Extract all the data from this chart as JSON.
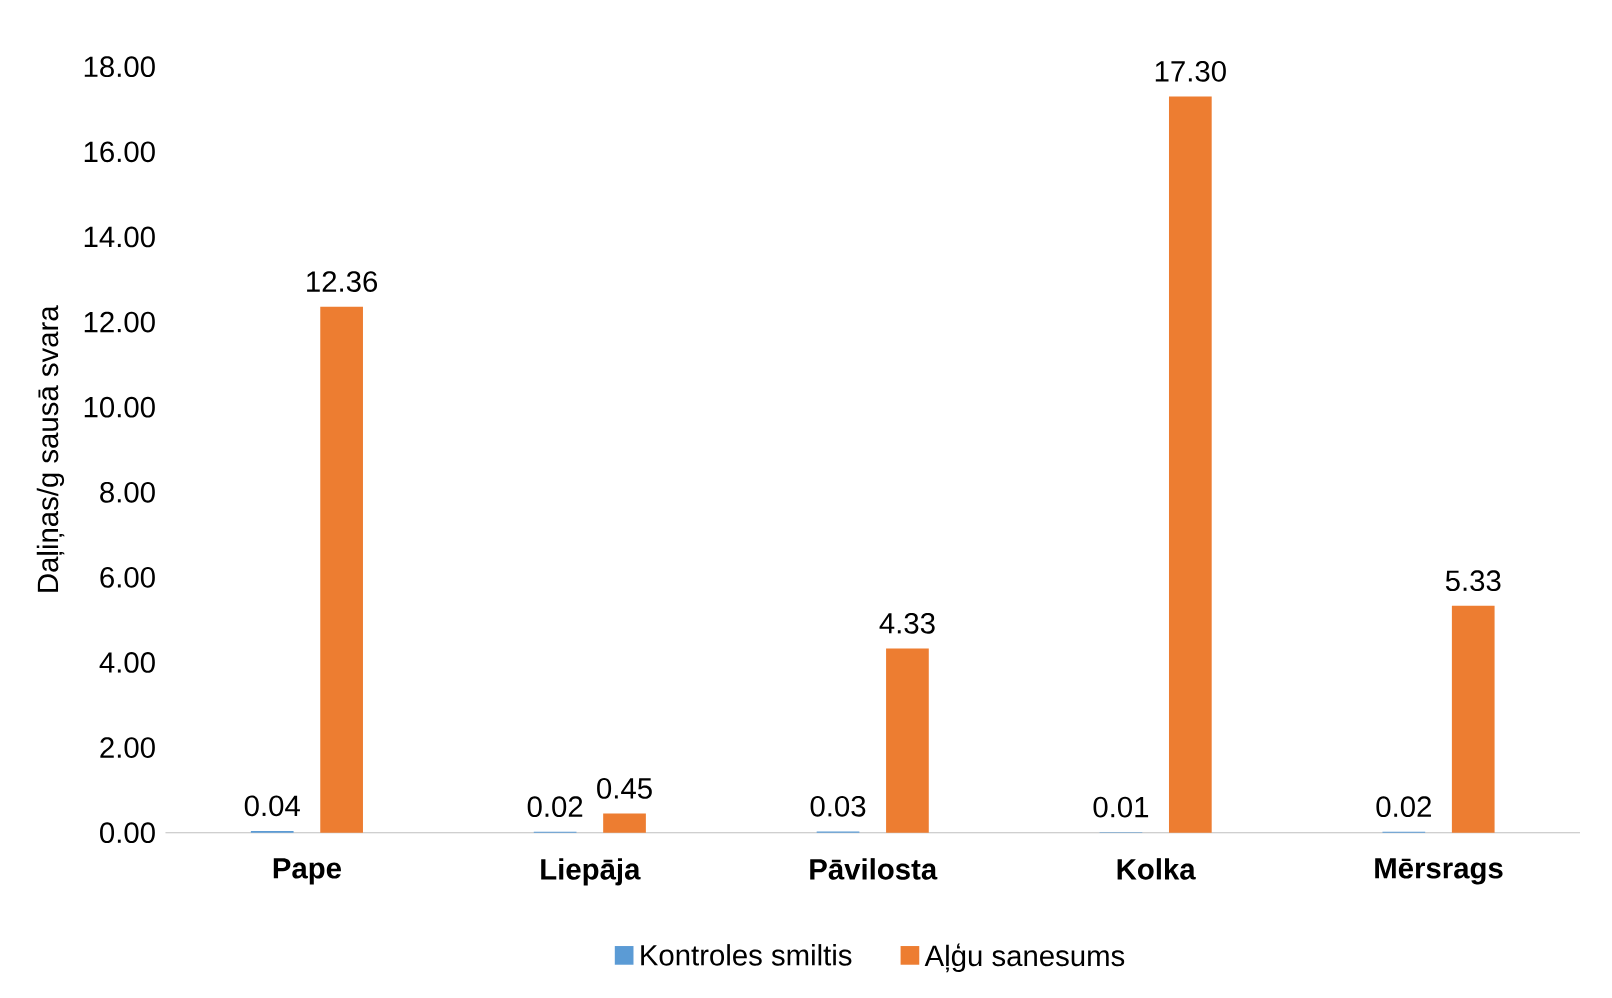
{
  "chart_data": {
    "type": "bar",
    "ylabel": "Daļiņas/g sausā svara",
    "categories": [
      "Pape",
      "Liepāja",
      "Pāvilosta",
      "Kolka",
      "Mērsrags"
    ],
    "series": [
      {
        "name": "Kontroles smiltis",
        "color": "#5b9bd5",
        "values": [
          0.04,
          0.02,
          0.03,
          0.01,
          0.02
        ],
        "value_labels": [
          "0.04",
          "0.02",
          "0.03",
          "0.01",
          "0.02"
        ]
      },
      {
        "name": "Aļģu sanesums",
        "color": "#ed7d31",
        "values": [
          12.36,
          0.45,
          4.33,
          17.3,
          5.33
        ],
        "value_labels": [
          "12.36",
          "0.45",
          "4.33",
          "17.30",
          "5.33"
        ]
      }
    ],
    "ylim": [
      0,
      18
    ],
    "yticks": [
      {
        "value": 0,
        "label": "0.00"
      },
      {
        "value": 2,
        "label": "2.00"
      },
      {
        "value": 4,
        "label": "4.00"
      },
      {
        "value": 6,
        "label": "6.00"
      },
      {
        "value": 8,
        "label": "8.00"
      },
      {
        "value": 10,
        "label": "10.00"
      },
      {
        "value": 12,
        "label": "12.00"
      },
      {
        "value": 14,
        "label": "14.00"
      },
      {
        "value": 16,
        "label": "16.00"
      },
      {
        "value": 18,
        "label": "18.00"
      }
    ],
    "legend": "bottom"
  }
}
